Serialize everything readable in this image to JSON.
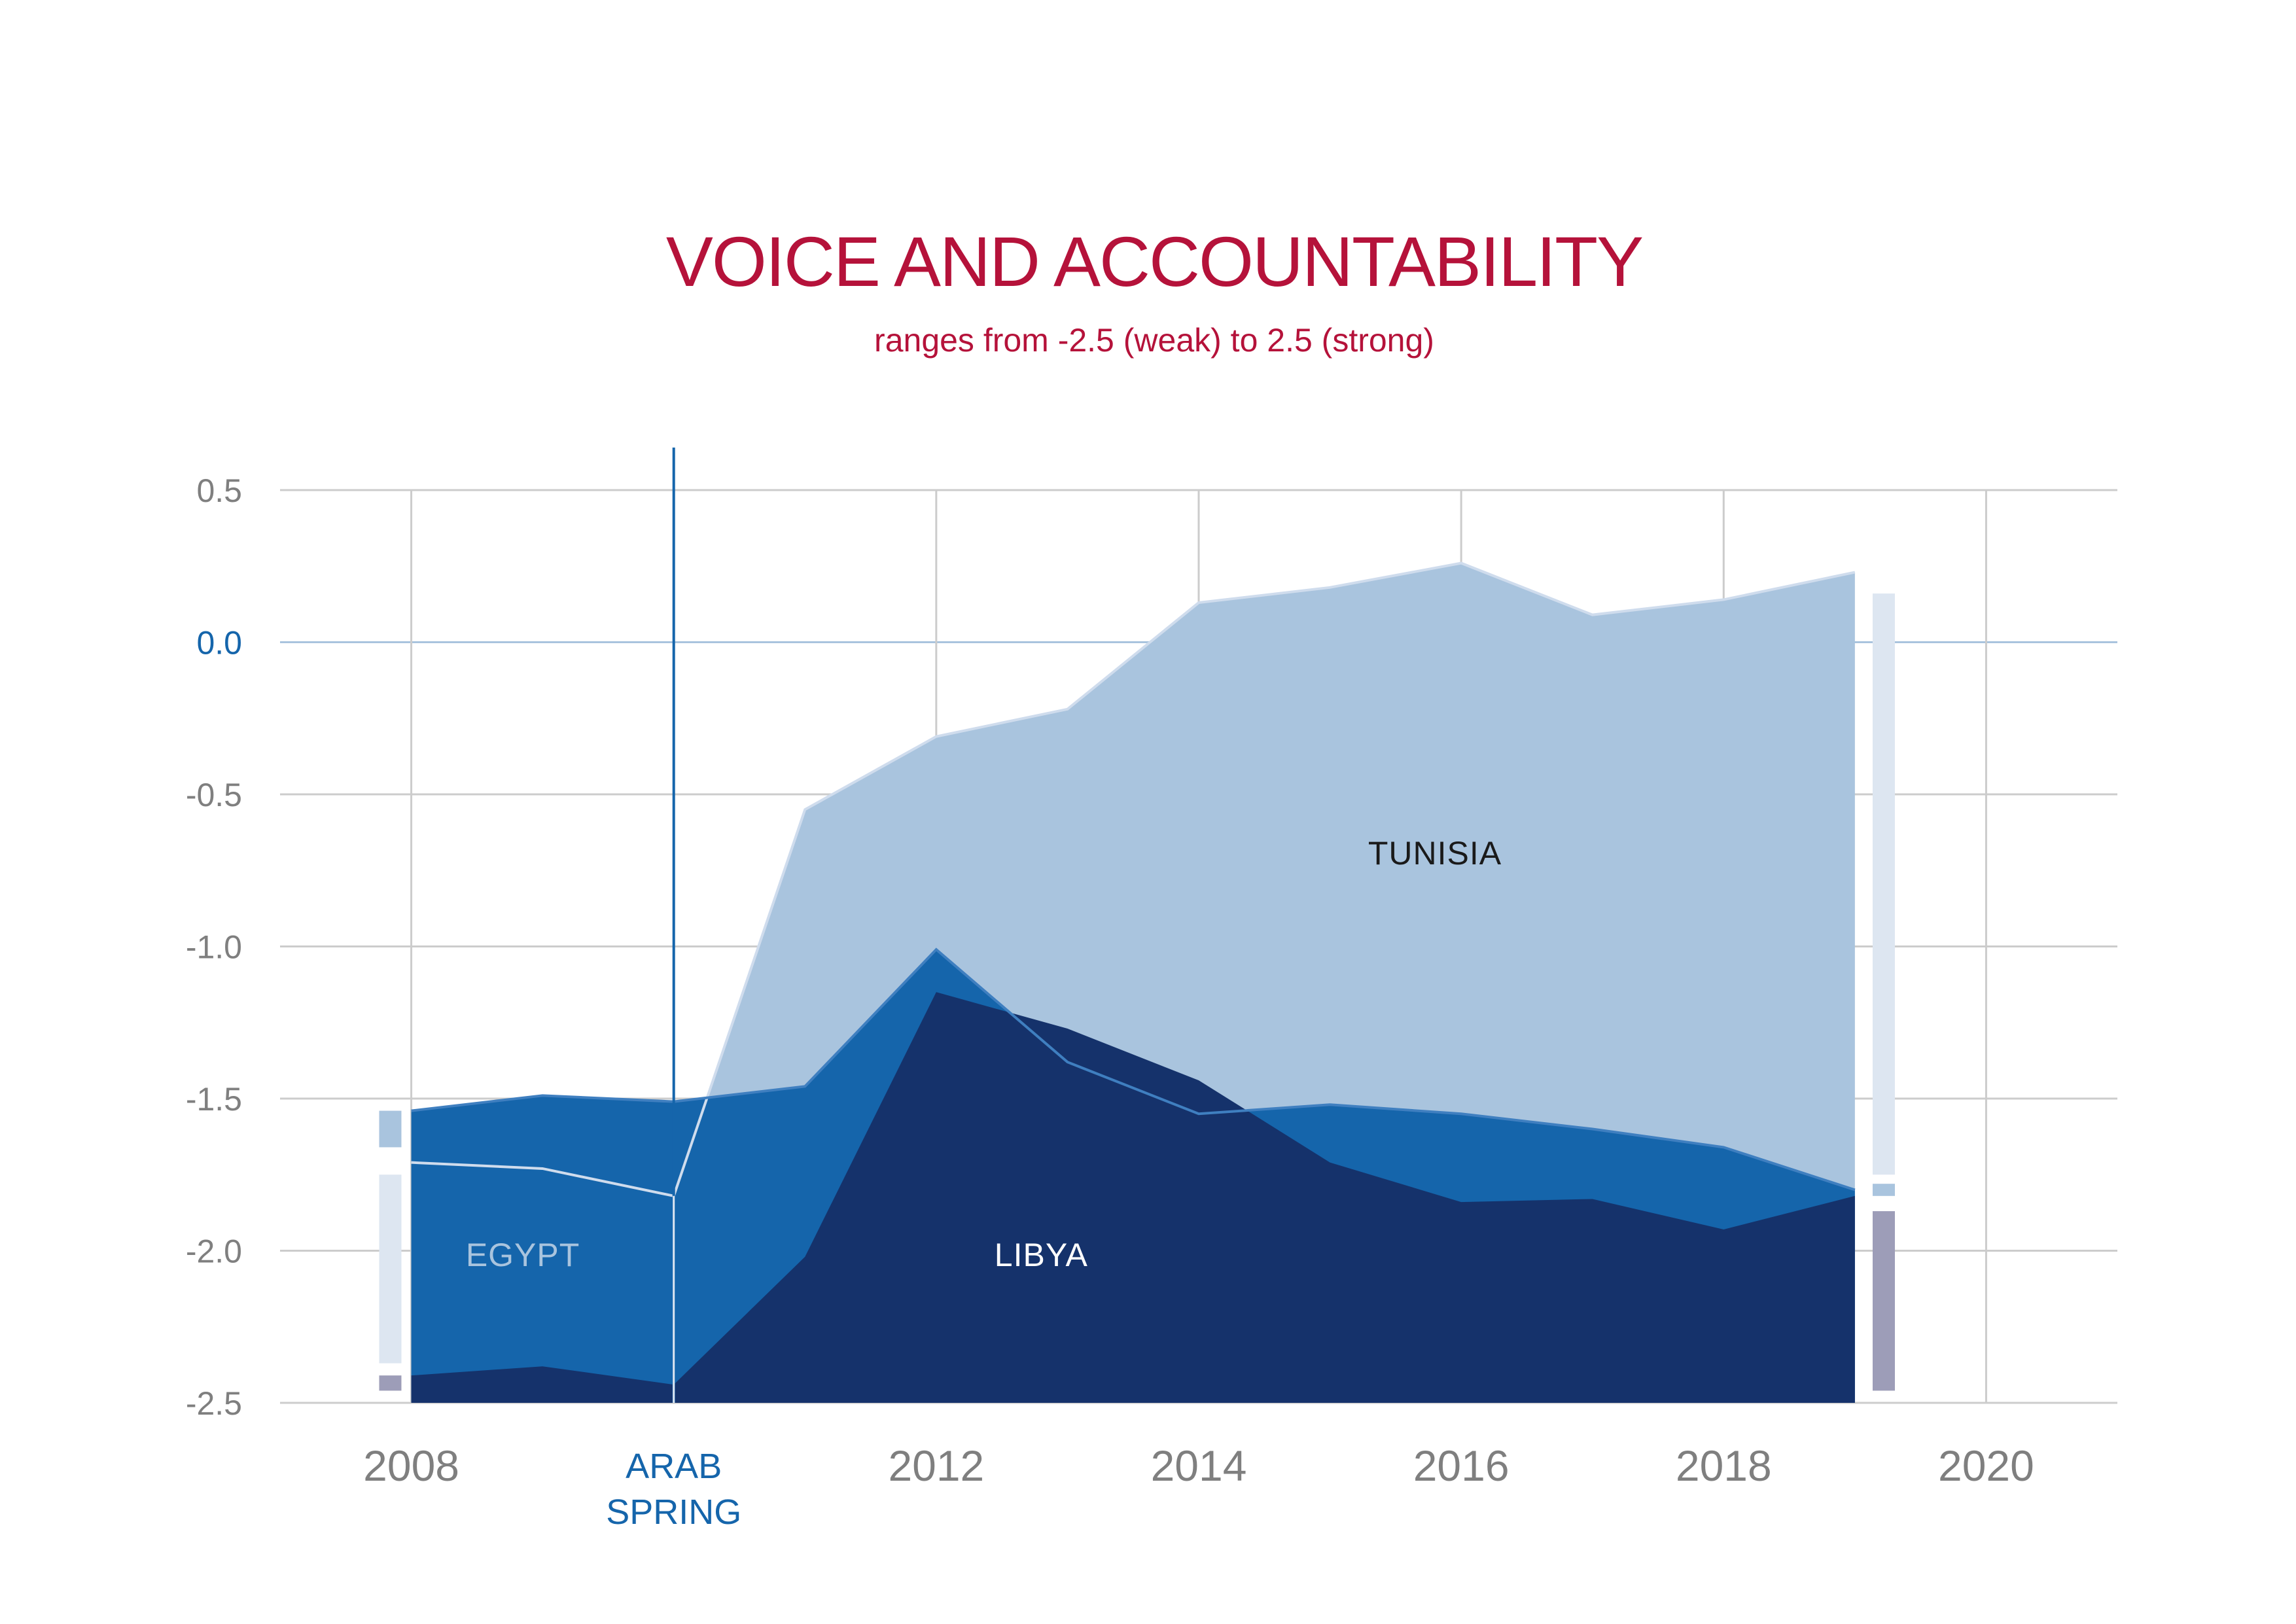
{
  "title": "VOICE AND ACCOUNTABILITY",
  "subtitle": "ranges from -2.5 (weak) to 2.5 (strong)",
  "colors": {
    "title": "#b5123a",
    "tunisia": "#a9c4de",
    "egypt": "#1565ab",
    "libya": "#15326b",
    "grid": "#cccccc",
    "zero_line": "#a9c4de",
    "zero_label": "#1565ab",
    "axis_text": "#7f7f7f",
    "arab_spring": "#1565ab",
    "legend_light": "#dde6f1",
    "legend_mid": "#a9c4de",
    "legend_gray": "#9d9db8"
  },
  "chart_data": {
    "type": "area",
    "title": "VOICE AND ACCOUNTABILITY",
    "subtitle": "ranges from -2.5 (weak) to 2.5 (strong)",
    "xlim": [
      2007,
      2021
    ],
    "ylim": [
      -2.5,
      0.5
    ],
    "x_ticks": [
      {
        "value": 2008,
        "label": "2008"
      },
      {
        "value": 2012,
        "label": "2012"
      },
      {
        "value": 2014,
        "label": "2014"
      },
      {
        "value": 2016,
        "label": "2016"
      },
      {
        "value": 2018,
        "label": "2018"
      },
      {
        "value": 2020,
        "label": "2020"
      }
    ],
    "y_ticks": [
      {
        "value": 0.5,
        "label": "0.5"
      },
      {
        "value": 0.0,
        "label": "0.0"
      },
      {
        "value": -0.5,
        "label": "-0.5"
      },
      {
        "value": -1.0,
        "label": "-1.0"
      },
      {
        "value": -1.5,
        "label": "-1.5"
      },
      {
        "value": -2.0,
        "label": "-2.0"
      },
      {
        "value": -2.5,
        "label": "-2.5"
      }
    ],
    "grid": true,
    "annotation": {
      "x": 2010,
      "label_lines": [
        "ARAB",
        "SPRING"
      ]
    },
    "x": [
      2008,
      2009,
      2010,
      2011,
      2012,
      2013,
      2014,
      2015,
      2016,
      2017,
      2018,
      2019
    ],
    "series": [
      {
        "name": "TUNISIA",
        "key": "tunisia",
        "values": [
          -1.71,
          -1.73,
          -1.82,
          -0.55,
          -0.31,
          -0.22,
          0.13,
          0.18,
          0.26,
          0.09,
          0.14,
          0.23
        ]
      },
      {
        "name": "EGYPT",
        "key": "egypt",
        "values": [
          -1.54,
          -1.49,
          -1.51,
          -1.46,
          -1.01,
          -1.38,
          -1.55,
          -1.52,
          -1.55,
          -1.6,
          -1.66,
          -1.8
        ]
      },
      {
        "name": "LIBYA",
        "key": "libya",
        "values": [
          -2.41,
          -2.38,
          -2.44,
          -2.02,
          -1.15,
          -1.27,
          -1.44,
          -1.71,
          -1.84,
          -1.83,
          -1.93,
          -1.82
        ]
      }
    ],
    "series_labels": [
      {
        "key": "tunisia",
        "text": "TUNISIA",
        "x": 2015.8,
        "y": -0.73
      },
      {
        "key": "egypt",
        "text": "EGYPT",
        "x": 2008.85,
        "y": -2.05
      },
      {
        "key": "libya",
        "text": "LIBYA",
        "x": 2012.8,
        "y": -2.05
      }
    ],
    "range_bars": [
      {
        "key": "egypt_start_top",
        "x": 2007.84,
        "y_top": -1.54,
        "y_bottom": -1.66,
        "color": "legend_mid"
      },
      {
        "key": "egypt_start_body",
        "x": 2007.84,
        "y_top": -1.75,
        "y_bottom": -2.37,
        "color": "legend_light"
      },
      {
        "key": "libya_start",
        "x": 2007.84,
        "y_top": -2.41,
        "y_bottom": -2.46,
        "color": "legend_gray"
      },
      {
        "key": "tunisia_end",
        "x": 2019.22,
        "y_top": 0.16,
        "y_bottom": -1.75,
        "color": "legend_light"
      },
      {
        "key": "egypt_end",
        "x": 2019.22,
        "y_top": -1.78,
        "y_bottom": -1.82,
        "color": "legend_mid"
      },
      {
        "key": "libya_end",
        "x": 2019.22,
        "y_top": -1.87,
        "y_bottom": -2.46,
        "color": "legend_gray"
      }
    ]
  }
}
